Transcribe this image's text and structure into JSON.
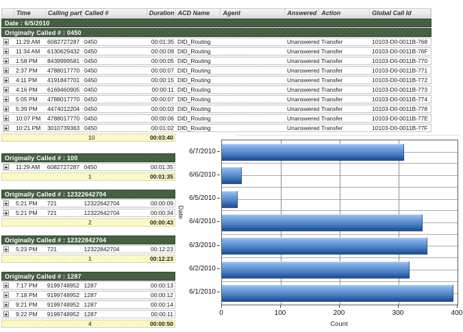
{
  "report": {
    "columns": [
      "Time",
      "Calling party #",
      "Called #",
      "Duration",
      "ACD Name",
      "Agent",
      "Answered",
      "Action",
      "Global Call Id"
    ],
    "date_band": "Date : 6/5/2010",
    "sections": [
      {
        "header": "Originally Called # : 0450",
        "wide": true,
        "rows": [
          [
            "11:29 AM",
            "6082727287",
            "0450",
            "00:01:35",
            "DID_Routing",
            "",
            "Unanswered",
            "Transfer",
            "10103-D0-0011B-768"
          ],
          [
            "11:34 AM",
            "6130629432",
            "0450",
            "00:00:09",
            "DID_Routing",
            "",
            "Unanswered",
            "Transfer",
            "10103-D0-0011B-76F"
          ],
          [
            "1:58 PM",
            "8439999581",
            "0450",
            "00:00:05",
            "DID_Routing",
            "",
            "Unanswered",
            "Transfer",
            "10103-D0-0011B-770"
          ],
          [
            "2:37 PM",
            "4788017770",
            "0450",
            "00:00:07",
            "DID_Routing",
            "",
            "Unanswered",
            "Transfer",
            "10103-D0-0011B-771"
          ],
          [
            "4:11 PM",
            "4191847701",
            "0450",
            "00:00:15",
            "DID_Routing",
            "",
            "Unanswered",
            "Transfer",
            "10103-D0-0011B-772"
          ],
          [
            "4:16 PM",
            "6169460905",
            "0450",
            "00:00:11",
            "DID_Routing",
            "",
            "Unanswered",
            "Transfer",
            "10103-D0-0011B-773"
          ],
          [
            "5:05 PM",
            "4788017770",
            "0450",
            "00:00:07",
            "DID_Routing",
            "",
            "Unanswered",
            "Transfer",
            "10103-D0-0011B-774"
          ],
          [
            "5:39 PM",
            "4474012204",
            "0450",
            "00:00:03",
            "DID_Routing",
            "",
            "Unanswered",
            "Transfer",
            "10103-D0-0011B-778"
          ],
          [
            "10:07 PM",
            "4788017770",
            "0450",
            "00:00:06",
            "DID_Routing",
            "",
            "Unanswered",
            "Transfer",
            "10103-D0-0011B-77E"
          ],
          [
            "10:21 PM",
            "3010739363",
            "0450",
            "00:01:02",
            "DID_Routing",
            "",
            "Unanswered",
            "Transfer",
            "10103-D0-0011B-77F"
          ]
        ],
        "summary": {
          "count": "10",
          "total_duration": "00:03:40"
        }
      },
      {
        "header": "Originally Called # : 100",
        "wide": false,
        "rows": [
          [
            "11:29 AM",
            "6082727287",
            "0450",
            "00:01:35"
          ]
        ],
        "summary": {
          "count": "1",
          "total_duration": "00:01:35"
        }
      },
      {
        "header": "Originally Called # : 12322642704",
        "wide": false,
        "rows": [
          [
            "5:21 PM",
            "721",
            "12322642704",
            "00:00:09"
          ],
          [
            "5:21 PM",
            "721",
            "12322642704",
            "00:00:34"
          ]
        ],
        "summary": {
          "count": "2",
          "total_duration": "00:00:43"
        }
      },
      {
        "header": "Originally Called # : 12322842704",
        "wide": false,
        "rows": [
          [
            "5:23 PM",
            "721",
            "12322842704",
            "00:12:23"
          ]
        ],
        "summary": {
          "count": "1",
          "total_duration": "00:12:23"
        }
      },
      {
        "header": "Originally Called # : 1287",
        "wide": false,
        "rows": [
          [
            "7:17 PM",
            "9199748952",
            "1287",
            "00:00:13"
          ],
          [
            "7:18 PM",
            "9199748952",
            "1287",
            "00:00:12"
          ],
          [
            "9:21 PM",
            "9199748952",
            "1287",
            "00:00:14"
          ],
          [
            "9:22 PM",
            "9199748952",
            "1287",
            "00:00:11"
          ]
        ],
        "summary": {
          "count": "4",
          "total_duration": "00:00:50"
        }
      }
    ]
  },
  "chart_data": {
    "type": "bar",
    "orientation": "horizontal",
    "categories": [
      "6/7/2010",
      "6/6/2010",
      "6/5/2010",
      "6/4/2010",
      "6/3/2010",
      "6/2/2010",
      "6/1/2010"
    ],
    "values": [
      308,
      32,
      26,
      340,
      348,
      318,
      392
    ],
    "xlabel": "Count",
    "ylabel": "Date",
    "xlim": [
      0,
      400
    ],
    "xticks": [
      0,
      100,
      200,
      300,
      400
    ],
    "grid": "both",
    "bar_color_top": "#a9cbf1",
    "bar_color_bottom": "#1d4b8e"
  },
  "icons": {
    "expand_label": "+"
  }
}
